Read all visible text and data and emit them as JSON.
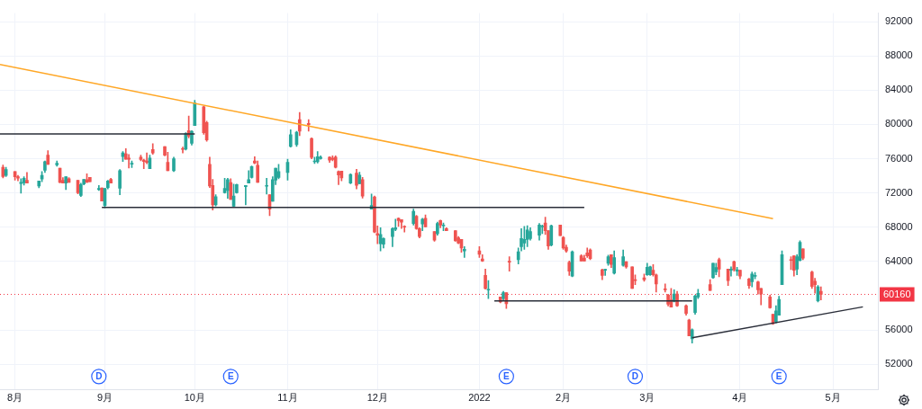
{
  "chart_data": {
    "type": "candlestick",
    "x": [
      "2021-07-29",
      "2021-07-30",
      "2021-08-02",
      "2021-08-03",
      "2021-08-04",
      "2021-08-05",
      "2021-08-06",
      "2021-08-10",
      "2021-08-11",
      "2021-08-12",
      "2021-08-13",
      "2021-08-16",
      "2021-08-17",
      "2021-08-18",
      "2021-08-19",
      "2021-08-20",
      "2021-08-23",
      "2021-08-24",
      "2021-08-25",
      "2021-08-26",
      "2021-08-27",
      "2021-08-30",
      "2021-08-31",
      "2021-09-01",
      "2021-09-02",
      "2021-09-03",
      "2021-09-06",
      "2021-09-07",
      "2021-09-08",
      "2021-09-09",
      "2021-09-10",
      "2021-09-13",
      "2021-09-14",
      "2021-09-15",
      "2021-09-16",
      "2021-09-17",
      "2021-09-21",
      "2021-09-22",
      "2021-09-24",
      "2021-09-27",
      "2021-09-28",
      "2021-09-29",
      "2021-09-30",
      "2021-10-01",
      "2021-10-04",
      "2021-10-05",
      "2021-10-06",
      "2021-10-07",
      "2021-10-08",
      "2021-10-11",
      "2021-10-12",
      "2021-10-13",
      "2021-10-14",
      "2021-10-15",
      "2021-10-18",
      "2021-10-19",
      "2021-10-20",
      "2021-10-21",
      "2021-10-22",
      "2021-10-25",
      "2021-10-26",
      "2021-10-27",
      "2021-10-28",
      "2021-10-29",
      "2021-11-01",
      "2021-11-02",
      "2021-11-04",
      "2021-11-05",
      "2021-11-08",
      "2021-11-09",
      "2021-11-10",
      "2021-11-11",
      "2021-11-12",
      "2021-11-15",
      "2021-11-16",
      "2021-11-17",
      "2021-11-18",
      "2021-11-19",
      "2021-11-22",
      "2021-11-24",
      "2021-11-25",
      "2021-11-26",
      "2021-11-29",
      "2021-11-30",
      "2021-12-01",
      "2021-12-02",
      "2021-12-03",
      "2021-12-06",
      "2021-12-07",
      "2021-12-08",
      "2021-12-09",
      "2021-12-10",
      "2021-12-13",
      "2021-12-14",
      "2021-12-15",
      "2021-12-16",
      "2021-12-17",
      "2021-12-20",
      "2021-12-21",
      "2021-12-22",
      "2021-12-23",
      "2021-12-24",
      "2021-12-27",
      "2021-12-28",
      "2021-12-29",
      "2021-12-30",
      "2022-01-04",
      "2022-01-05",
      "2022-01-06",
      "2022-01-07",
      "2022-01-11",
      "2022-01-12",
      "2022-01-13",
      "2022-01-14",
      "2022-01-17",
      "2022-01-18",
      "2022-01-19",
      "2022-01-20",
      "2022-01-21",
      "2022-01-24",
      "2022-01-25",
      "2022-01-26",
      "2022-01-27",
      "2022-01-28",
      "2022-01-31",
      "2022-02-01",
      "2022-02-02",
      "2022-02-03",
      "2022-02-04",
      "2022-02-07",
      "2022-02-08",
      "2022-02-09",
      "2022-02-10",
      "2022-02-14",
      "2022-02-15",
      "2022-02-16",
      "2022-02-17",
      "2022-02-18",
      "2022-02-21",
      "2022-02-22",
      "2022-02-24",
      "2022-02-25",
      "2022-02-28",
      "2022-03-01",
      "2022-03-02",
      "2022-03-03",
      "2022-03-04",
      "2022-03-07",
      "2022-03-08",
      "2022-03-09",
      "2022-03-10",
      "2022-03-11",
      "2022-03-14",
      "2022-03-15",
      "2022-03-16",
      "2022-03-17",
      "2022-03-18",
      "2022-03-22",
      "2022-03-23",
      "2022-03-24",
      "2022-03-25",
      "2022-03-28",
      "2022-03-29",
      "2022-03-30",
      "2022-03-31",
      "2022-04-01",
      "2022-04-04",
      "2022-04-05",
      "2022-04-06",
      "2022-04-07",
      "2022-04-08",
      "2022-04-11",
      "2022-04-12",
      "2022-04-13",
      "2022-04-14",
      "2022-04-15",
      "2022-04-18",
      "2022-04-19",
      "2022-04-20",
      "2022-04-21",
      "2022-04-22",
      "2022-04-25",
      "2022-04-26",
      "2022-04-27",
      "2022-04-28"
    ],
    "ohlc": [
      [
        75000,
        75260,
        73750,
        73920
      ],
      [
        74050,
        75000,
        73920,
        74730
      ],
      [
        74500,
        74500,
        73490,
        73890
      ],
      [
        73890,
        74050,
        73420,
        73720
      ],
      [
        73110,
        73650,
        71980,
        73240
      ],
      [
        73180,
        73890,
        72910,
        73720
      ],
      [
        73490,
        74400,
        73150,
        73150
      ],
      [
        72810,
        73390,
        72610,
        73390
      ],
      [
        73620,
        74500,
        73310,
        74050
      ],
      [
        74660,
        75740,
        74400,
        75670
      ],
      [
        76410,
        76950,
        75340,
        75340
      ],
      [
        75270,
        75740,
        75130,
        75470
      ],
      [
        74900,
        74900,
        73180,
        73240
      ],
      [
        73490,
        73790,
        73150,
        73150
      ],
      [
        73150,
        73890,
        72400,
        73890
      ],
      [
        73650,
        73790,
        73240,
        73240
      ],
      [
        73490,
        73490,
        71900,
        72030
      ],
      [
        71700,
        73150,
        71570,
        72980
      ],
      [
        73040,
        73590,
        72950,
        73590
      ],
      [
        73550,
        74250,
        73240,
        73240
      ],
      [
        73820,
        73820,
        73310,
        73310
      ],
      [
        72400,
        72880,
        72300,
        72540
      ],
      [
        72580,
        72580,
        71060,
        71060
      ],
      [
        70520,
        72540,
        70280,
        72540
      ],
      [
        72640,
        73490,
        72470,
        73390
      ],
      [
        73590,
        73720,
        73150,
        73150
      ],
      [
        72540,
        74730,
        71800,
        74600
      ],
      [
        76240,
        76850,
        75670,
        76680
      ],
      [
        76580,
        77180,
        75940,
        75940
      ],
      [
        76070,
        76510,
        74900,
        75940
      ],
      [
        75370,
        75740,
        74970,
        75440
      ],
      [
        76170,
        76410,
        75740,
        75910
      ],
      [
        75840,
        75940,
        74830,
        75670
      ],
      [
        75740,
        76680,
        75400,
        75570
      ],
      [
        74830,
        76410,
        74830,
        76070
      ],
      [
        77080,
        77760,
        76510,
        76680
      ],
      [
        77420,
        77420,
        76340,
        76410
      ],
      [
        75570,
        76750,
        74600,
        74600
      ],
      [
        74600,
        76170,
        74500,
        76000
      ],
      [
        77180,
        77350,
        76680,
        77080
      ],
      [
        77120,
        79040,
        77010,
        78940
      ],
      [
        79280,
        80990,
        78440,
        78640
      ],
      [
        77790,
        79280,
        77590,
        79210
      ],
      [
        79880,
        82810,
        79880,
        82510
      ],
      [
        82070,
        82140,
        78840,
        79040
      ],
      [
        80210,
        80390,
        78030,
        78190
      ],
      [
        75340,
        76170,
        72640,
        72810
      ],
      [
        72880,
        73590,
        70010,
        70620
      ],
      [
        70620,
        71800,
        70490,
        71570
      ],
      [
        72030,
        73720,
        71970,
        72540
      ],
      [
        72300,
        73720,
        71360,
        73550
      ],
      [
        73220,
        73650,
        71230,
        71230
      ],
      [
        70450,
        73040,
        70450,
        71630
      ],
      [
        72030,
        73040,
        71970,
        72980
      ],
      [
        72740,
        72880,
        70620,
        72880
      ],
      [
        73150,
        74600,
        73150,
        73550
      ],
      [
        73820,
        75170,
        73720,
        75070
      ],
      [
        75740,
        76240,
        75400,
        75500
      ],
      [
        75230,
        75740,
        73240,
        73240
      ],
      [
        72780,
        73720,
        71870,
        72880
      ],
      [
        71800,
        71800,
        69340,
        70110
      ],
      [
        71030,
        73890,
        71030,
        73550
      ],
      [
        73490,
        74900,
        72980,
        74900
      ],
      [
        73820,
        75340,
        73650,
        74500
      ],
      [
        74400,
        75940,
        73490,
        75570
      ],
      [
        77420,
        79380,
        77350,
        78800
      ],
      [
        77630,
        79210,
        77420,
        79100
      ],
      [
        80560,
        81400,
        78700,
        79210
      ],
      [
        80120,
        80560,
        79210,
        79980
      ],
      [
        78360,
        78440,
        76000,
        76140
      ],
      [
        75640,
        76170,
        75440,
        75700
      ],
      [
        75640,
        76850,
        75500,
        76240
      ],
      [
        76010,
        76340,
        75940,
        76170
      ],
      [
        76170,
        76240,
        75570,
        75840
      ],
      [
        76070,
        76340,
        75740,
        75910
      ],
      [
        76170,
        76340,
        74900,
        75000
      ],
      [
        74500,
        74570,
        72980,
        74090
      ],
      [
        74560,
        74560,
        73420,
        73750
      ],
      [
        73150,
        74230,
        73080,
        74160
      ],
      [
        74330,
        74760,
        72470,
        72880
      ],
      [
        73080,
        74430,
        73080,
        74090
      ],
      [
        73550,
        73820,
        71400,
        71630
      ],
      [
        70110,
        71870,
        70110,
        70550
      ],
      [
        71530,
        71630,
        67360,
        67430
      ],
      [
        67250,
        68160,
        66070,
        67080
      ],
      [
        66070,
        67930,
        65240,
        67150
      ],
      [
        66010,
        66750,
        65570,
        66680
      ],
      [
        66920,
        67930,
        65740,
        67830
      ],
      [
        67760,
        68940,
        67590,
        67930
      ],
      [
        69040,
        69110,
        68100,
        68770
      ],
      [
        68900,
        68900,
        67860,
        68600
      ],
      [
        68100,
        68170,
        67430,
        68000
      ],
      [
        68430,
        70110,
        68260,
        69850
      ],
      [
        69280,
        69380,
        67760,
        67830
      ],
      [
        67830,
        67930,
        66750,
        66920
      ],
      [
        68370,
        69040,
        67590,
        68940
      ],
      [
        69040,
        69450,
        68030,
        68030
      ],
      [
        67490,
        67490,
        66350,
        66480
      ],
      [
        67250,
        68600,
        67080,
        68430
      ],
      [
        68770,
        68840,
        67930,
        68260
      ],
      [
        68160,
        68500,
        67590,
        68260
      ],
      [
        67830,
        67930,
        67590,
        67590
      ],
      [
        67590,
        67590,
        66350,
        66410
      ],
      [
        66750,
        66920,
        66070,
        66140
      ],
      [
        66580,
        66580,
        65060,
        65570
      ],
      [
        65240,
        65740,
        64460,
        65430
      ],
      [
        65240,
        65740,
        64460,
        64830
      ],
      [
        64290,
        64800,
        63990,
        64050
      ],
      [
        62380,
        63110,
        60760,
        60860
      ],
      [
        60660,
        61770,
        59680,
        60720
      ],
      [
        59850,
        59850,
        59180,
        59280
      ],
      [
        59680,
        60520,
        59480,
        60360
      ],
      [
        60360,
        60360,
        58500,
        59070
      ],
      [
        63990,
        64560,
        62880,
        63920
      ],
      [
        64220,
        65570,
        63720,
        65130
      ],
      [
        65740,
        67830,
        65240,
        66680
      ],
      [
        66140,
        68100,
        65410,
        66580
      ],
      [
        66580,
        68170,
        65740,
        67690
      ],
      [
        66680,
        67930,
        66480,
        67490
      ],
      [
        67080,
        68430,
        66480,
        68260
      ],
      [
        68030,
        68260,
        67250,
        68100
      ],
      [
        68500,
        69170,
        67150,
        67590
      ],
      [
        67590,
        67590,
        65410,
        65810
      ],
      [
        65910,
        68260,
        65810,
        68170
      ],
      [
        68260,
        68260,
        67020,
        67020
      ],
      [
        66820,
        66920,
        65410,
        65570
      ],
      [
        65670,
        65910,
        65060,
        65240
      ],
      [
        63890,
        64050,
        62380,
        62880
      ],
      [
        62300,
        65240,
        62210,
        65130
      ],
      [
        64660,
        64800,
        64050,
        64050
      ],
      [
        64390,
        64730,
        64050,
        64050
      ],
      [
        65000,
        65570,
        64460,
        64660
      ],
      [
        65340,
        65470,
        64220,
        64330
      ],
      [
        63040,
        63110,
        61870,
        62380
      ],
      [
        62980,
        63110,
        62380,
        63040
      ],
      [
        63790,
        64730,
        63550,
        64560
      ],
      [
        64800,
        64800,
        63280,
        63650
      ],
      [
        62640,
        65240,
        62540,
        64460
      ],
      [
        63550,
        65340,
        63450,
        64560
      ],
      [
        63990,
        63990,
        63210,
        63380
      ],
      [
        63380,
        63380,
        60860,
        60860
      ],
      [
        61870,
        62440,
        61300,
        61770
      ],
      [
        62100,
        62540,
        61700,
        61870
      ],
      [
        62440,
        63790,
        62380,
        63320
      ],
      [
        62440,
        63450,
        62380,
        63380
      ],
      [
        62980,
        63650,
        62300,
        62440
      ],
      [
        62440,
        62540,
        60420,
        61370
      ],
      [
        60790,
        61370,
        60420,
        60690
      ],
      [
        60080,
        60180,
        58810,
        59000
      ],
      [
        59520,
        60860,
        58670,
        58670
      ],
      [
        59350,
        60690,
        59280,
        60190
      ],
      [
        60190,
        60520,
        58740,
        58840
      ],
      [
        58840,
        58940,
        57730,
        57930
      ],
      [
        57150,
        57250,
        55310,
        55310
      ],
      [
        54970,
        56140,
        54460,
        56040
      ],
      [
        58030,
        60080,
        57830,
        59960
      ],
      [
        59850,
        60760,
        59680,
        60280
      ],
      [
        61300,
        61870,
        60620,
        60620
      ],
      [
        62100,
        63790,
        62040,
        63790
      ],
      [
        62780,
        63790,
        62440,
        63290
      ],
      [
        64220,
        64390,
        62210,
        63110
      ],
      [
        63110,
        63110,
        61200,
        61770
      ],
      [
        62980,
        63380,
        62300,
        63110
      ],
      [
        63990,
        64050,
        62880,
        63040
      ],
      [
        62880,
        63320,
        62380,
        63040
      ],
      [
        62980,
        62980,
        61970,
        62300
      ],
      [
        61970,
        62040,
        60860,
        61200
      ],
      [
        61630,
        62780,
        61030,
        62540
      ],
      [
        62270,
        62710,
        61970,
        62380
      ],
      [
        61630,
        61700,
        60180,
        60690
      ],
      [
        60860,
        60860,
        58940,
        60180
      ],
      [
        59850,
        60080,
        58530,
        58600
      ],
      [
        57830,
        57830,
        56650,
        56720
      ],
      [
        56980,
        58840,
        56820,
        58240
      ],
      [
        57730,
        59950,
        57730,
        59580
      ],
      [
        61300,
        65240,
        61300,
        64800
      ],
      [
        64220,
        64560,
        63040,
        64120
      ],
      [
        64660,
        64660,
        62300,
        62980
      ],
      [
        63110,
        64800,
        62440,
        64560
      ],
      [
        64120,
        66420,
        64050,
        66250
      ],
      [
        65470,
        65470,
        64220,
        64390
      ],
      [
        62780,
        62880,
        60860,
        61090
      ],
      [
        61700,
        62040,
        60290,
        61300
      ],
      [
        59410,
        61200,
        59280,
        61030
      ],
      [
        60520,
        61030,
        59520,
        60160
      ]
    ],
    "colors": [
      "#ef5350",
      "#26a69a",
      "#ef5350",
      "#ef5350",
      "#26a69a",
      "#26a69a",
      "#ef5350",
      "#26a69a",
      "#26a69a",
      "#26a69a",
      "#ef5350",
      "#26a69a",
      "#ef5350",
      "#ef5350",
      "#26a69a",
      "#ef5350",
      "#ef5350",
      "#26a69a",
      "#26a69a",
      "#ef5350",
      "#ef5350",
      "#26a69a",
      "#ef5350",
      "#26a69a",
      "#26a69a",
      "#ef5350",
      "#26a69a",
      "#26a69a",
      "#ef5350",
      "#ef5350",
      "#26a69a",
      "#ef5350",
      "#ef5350",
      "#ef5350",
      "#26a69a",
      "#ef5350",
      "#ef5350",
      "#ef5350",
      "#26a69a",
      "#ef5350",
      "#26a69a",
      "#ef5350",
      "#26a69a",
      "#26a69a",
      "#ef5350",
      "#ef5350",
      "#ef5350",
      "#ef5350",
      "#26a69a",
      "#26a69a",
      "#26a69a",
      "#ef5350",
      "#26a69a",
      "#26a69a",
      "#26a69a",
      "#26a69a",
      "#26a69a",
      "#ef5350",
      "#ef5350",
      "#26a69a",
      "#ef5350",
      "#26a69a",
      "#26a69a",
      "#26a69a",
      "#26a69a",
      "#26a69a",
      "#26a69a",
      "#ef5350",
      "#ef5350",
      "#ef5350",
      "#26a69a",
      "#26a69a",
      "#26a69a",
      "#ef5350",
      "#ef5350",
      "#ef5350",
      "#ef5350",
      "#ef5350",
      "#26a69a",
      "#ef5350",
      "#26a69a",
      "#ef5350",
      "#26a69a",
      "#ef5350",
      "#ef5350",
      "#26a69a",
      "#26a69a",
      "#26a69a",
      "#26a69a",
      "#ef5350",
      "#ef5350",
      "#ef5350",
      "#26a69a",
      "#ef5350",
      "#ef5350",
      "#26a69a",
      "#ef5350",
      "#ef5350",
      "#26a69a",
      "#ef5350",
      "#26a69a",
      "#ef5350",
      "#ef5350",
      "#ef5350",
      "#ef5350",
      "#26a69a",
      "#ef5350",
      "#ef5350",
      "#ef5350",
      "#26a69a",
      "#ef5350",
      "#26a69a",
      "#ef5350",
      "#ef5350",
      "#26a69a",
      "#26a69a",
      "#26a69a",
      "#26a69a",
      "#26a69a",
      "#26a69a",
      "#26a69a",
      "#ef5350",
      "#ef5350",
      "#26a69a",
      "#ef5350",
      "#ef5350",
      "#ef5350",
      "#ef5350",
      "#26a69a",
      "#ef5350",
      "#ef5350",
      "#ef5350",
      "#ef5350",
      "#ef5350",
      "#26a69a",
      "#26a69a",
      "#ef5350",
      "#26a69a",
      "#26a69a",
      "#ef5350",
      "#ef5350",
      "#ef5350",
      "#ef5350",
      "#26a69a",
      "#26a69a",
      "#ef5350",
      "#ef5350",
      "#ef5350",
      "#ef5350",
      "#ef5350",
      "#26a69a",
      "#ef5350",
      "#ef5350",
      "#ef5350",
      "#26a69a",
      "#26a69a",
      "#26a69a",
      "#ef5350",
      "#26a69a",
      "#26a69a",
      "#ef5350",
      "#ef5350",
      "#26a69a",
      "#ef5350",
      "#26a69a",
      "#ef5350",
      "#ef5350",
      "#26a69a",
      "#26a69a",
      "#ef5350",
      "#ef5350",
      "#ef5350",
      "#ef5350",
      "#26a69a",
      "#26a69a",
      "#26a69a",
      "#ef5350",
      "#ef5350",
      "#26a69a",
      "#26a69a",
      "#ef5350",
      "#ef5350",
      "#ef5350",
      "#26a69a",
      "#ef5350"
    ],
    "series": [
      {
        "type": "line",
        "x": [
          "2021-07-28",
          "2022-04-12"
        ],
        "values": [
          87000,
          69000
        ],
        "color": "#ffa726"
      },
      {
        "type": "line",
        "x": [
          "2021-07-28",
          "2021-10-01"
        ],
        "values": [
          78900,
          78900
        ],
        "color": "#2a2e39"
      },
      {
        "type": "line",
        "x": [
          "2021-08-31",
          "2022-02-08"
        ],
        "values": [
          70300,
          70300
        ],
        "color": "#2a2e39"
      },
      {
        "type": "line",
        "x": [
          "2022-01-09",
          "2022-03-16"
        ],
        "values": [
          59400,
          59400
        ],
        "color": "#2a2e39"
      },
      {
        "type": "line",
        "x": [
          "2022-03-16",
          "2022-05-12"
        ],
        "values": [
          55100,
          58700
        ],
        "color": "#2a2e39"
      }
    ],
    "marker": "none",
    "line_style": "solid",
    "ref_lines": [
      {
        "axis": "y",
        "value": 60160,
        "label": "60160",
        "color": "#f23645",
        "line_style": "dotted"
      }
    ],
    "annotations": [
      {
        "text": "D",
        "x": "2021-08-30"
      },
      {
        "text": "E",
        "x": "2021-10-13"
      },
      {
        "text": "E",
        "x": "2022-01-13"
      },
      {
        "text": "D",
        "x": "2022-02-25"
      },
      {
        "text": "E",
        "x": "2022-04-14"
      }
    ],
    "xlim": [
      "2021-07-28",
      "2022-05-17"
    ],
    "xticks": [
      {
        "value": "2021-08-02",
        "label": "8月"
      },
      {
        "value": "2021-09-01",
        "label": "9月"
      },
      {
        "value": "2021-10-01",
        "label": "10月"
      },
      {
        "value": "2021-11-01",
        "label": "11月"
      },
      {
        "value": "2021-12-01",
        "label": "12月"
      },
      {
        "value": "2022-01-04",
        "label": "2022"
      },
      {
        "value": "2022-02-01",
        "label": "2月"
      },
      {
        "value": "2022-03-01",
        "label": "3月"
      },
      {
        "value": "2022-04-01",
        "label": "4月"
      },
      {
        "value": "2022-05-02",
        "label": "5月"
      }
    ],
    "ylim": [
      49000,
      93000
    ],
    "yticks": [
      52000,
      56000,
      64000,
      68000,
      72000,
      76000,
      80000,
      84000,
      88000,
      92000
    ],
    "grid": true,
    "legend": false
  }
}
